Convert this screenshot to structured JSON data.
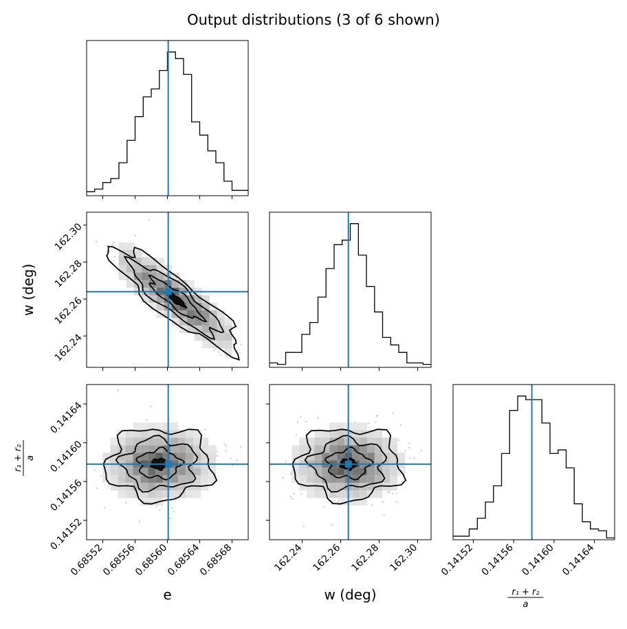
{
  "title": "Output distributions (3 of 6 shown)",
  "colors": {
    "truth": "#1f77b4",
    "hist": "#000000",
    "contour": "#000000",
    "density": "#000000"
  },
  "chart_data": {
    "type": "corner",
    "parameters": [
      {
        "key": "e",
        "label": "e",
        "range": [
          0.6855,
          0.6857
        ],
        "ticks": [
          0.68552,
          0.68556,
          0.6856,
          0.68564,
          0.68568
        ],
        "tick_labels": [
          "0.68552",
          "0.68556",
          "0.68560",
          "0.68564",
          "0.68568"
        ],
        "truth": 0.685601
      },
      {
        "key": "w",
        "label": "w (deg)",
        "range": [
          162.223,
          162.307
        ],
        "ticks": [
          162.24,
          162.26,
          162.28,
          162.3
        ],
        "tick_labels": [
          "162.24",
          "162.26",
          "162.28",
          "162.30"
        ],
        "truth": 162.264
      },
      {
        "key": "r",
        "label_num": "r₁ + r₂",
        "label_den": "a",
        "range": [
          0.1415,
          0.14166
        ],
        "ticks": [
          0.14152,
          0.14156,
          0.1416,
          0.14164
        ],
        "tick_labels": [
          "0.14152",
          "0.14156",
          "0.14160",
          "0.14164"
        ],
        "truth": 0.141578
      }
    ],
    "histograms": [
      {
        "param": "e",
        "bin_edges": [
          0.6855,
          0.68551,
          0.68552,
          0.68553,
          0.68554,
          0.68555,
          0.68556,
          0.68557,
          0.68558,
          0.68559,
          0.6856,
          0.68561,
          0.68562,
          0.68563,
          0.68564,
          0.68565,
          0.68566,
          0.68567,
          0.68568,
          0.68569,
          0.6857
        ],
        "counts": [
          3,
          5,
          10,
          13,
          25,
          42,
          60,
          75,
          81,
          95,
          109,
          104,
          92,
          56,
          46,
          34,
          25,
          11,
          4,
          4
        ]
      },
      {
        "param": "w",
        "bin_edges": [
          162.223,
          162.2272,
          162.2314,
          162.2356,
          162.2398,
          162.244,
          162.2482,
          162.2524,
          162.2566,
          162.2608,
          162.265,
          162.2692,
          162.2734,
          162.2776,
          162.2818,
          162.286,
          162.2902,
          162.2944,
          162.2986,
          162.3028,
          162.307
        ],
        "counts": [
          3,
          2,
          10,
          10,
          22,
          30,
          47,
          66,
          82,
          85,
          96,
          75,
          54,
          37,
          20,
          15,
          10,
          3,
          3,
          2
        ]
      },
      {
        "param": "r",
        "bin_edges": [
          0.1415,
          0.141508,
          0.141516,
          0.141524,
          0.141532,
          0.14154,
          0.141548,
          0.141556,
          0.141564,
          0.141572,
          0.14158,
          0.141588,
          0.141596,
          0.141604,
          0.141612,
          0.14162,
          0.141628,
          0.141636,
          0.141644,
          0.141652,
          0.14166
        ],
        "counts": [
          2,
          2,
          6,
          12,
          21,
          30,
          48,
          72,
          80,
          78,
          78,
          65,
          48,
          50,
          40,
          20,
          10,
          6,
          5,
          1
        ]
      }
    ],
    "pairs": [
      {
        "x": "e",
        "y": "w",
        "correlation": -0.9,
        "center": [
          0.68561,
          162.26
        ]
      },
      {
        "x": "e",
        "y": "r",
        "correlation": 0.0,
        "center": [
          0.68559,
          0.141578
        ]
      },
      {
        "x": "w",
        "y": "r",
        "correlation": 0.0,
        "center": [
          162.264,
          0.141578
        ]
      }
    ]
  }
}
